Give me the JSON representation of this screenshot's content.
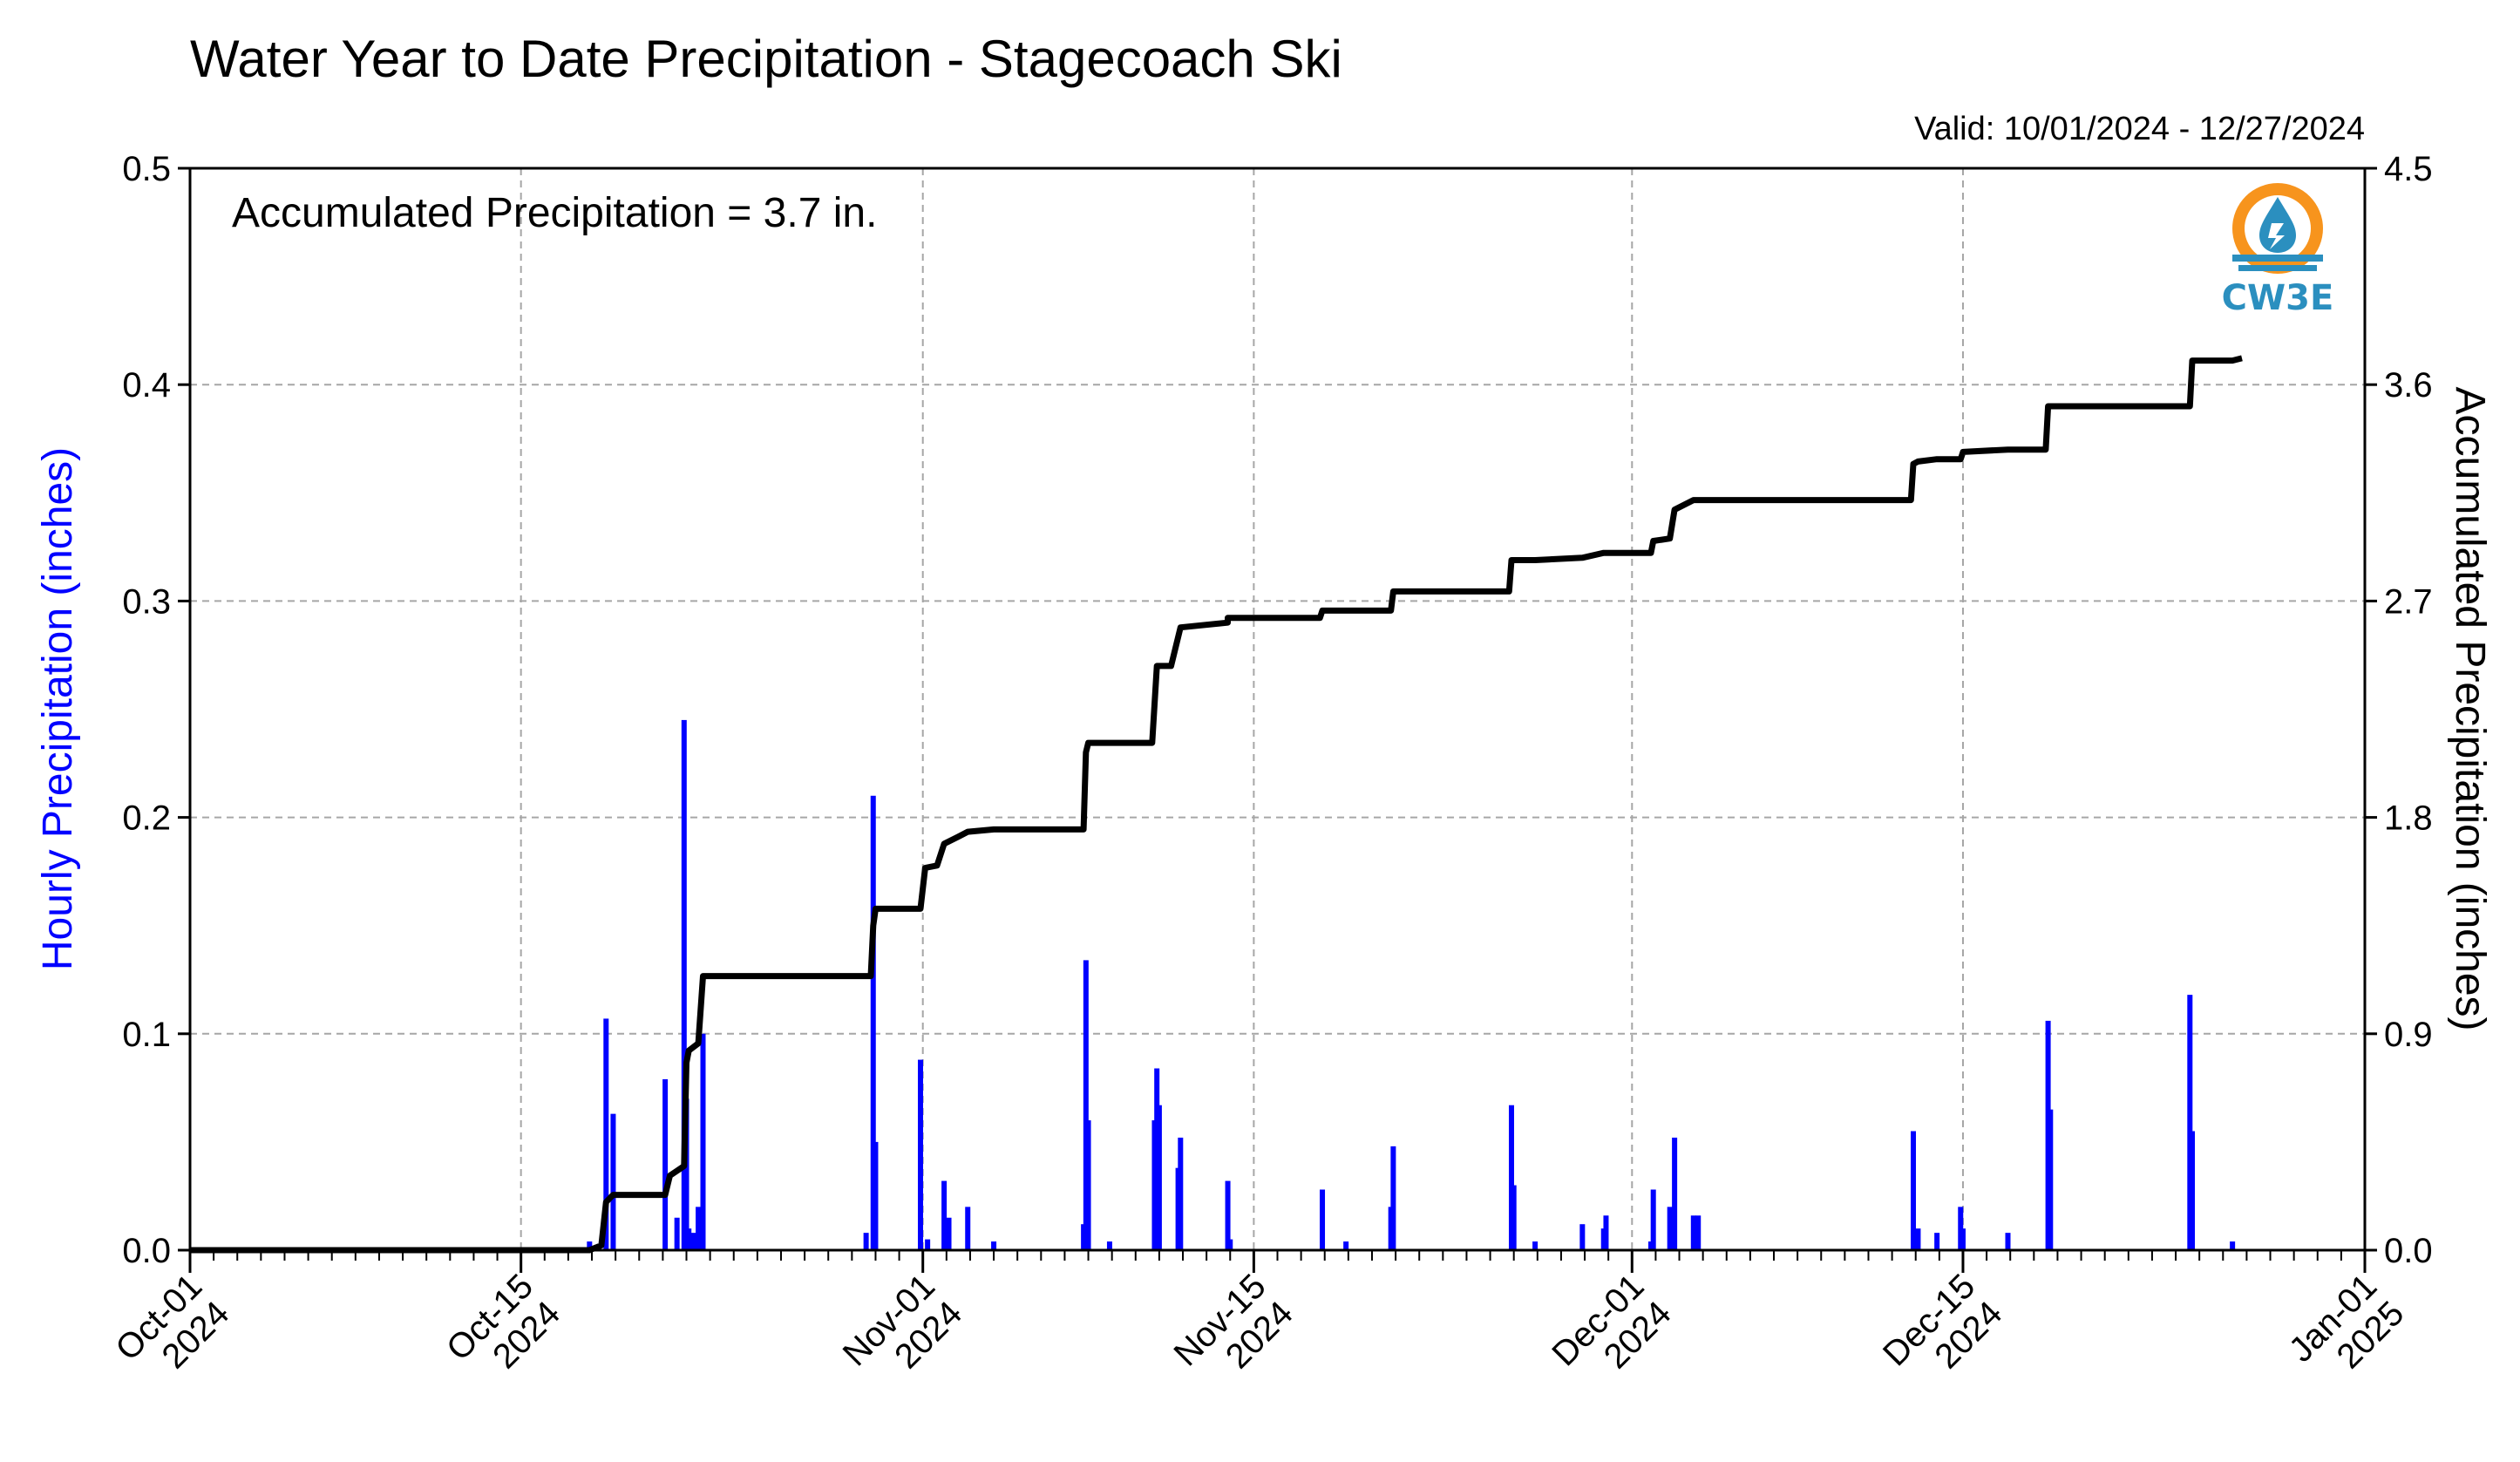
{
  "chart_data": {
    "type": "bar",
    "title": "Water Year to Date Precipitation - Stagecoach Ski",
    "valid_range": "Valid: 10/01/2024 - 12/27/2024",
    "annotation": "Accumulated Precipitation = 3.7 in.",
    "ylabel_left": "Hourly Precipitation (inches)",
    "ylabel_right": "Accumulated Precipitation (inches)",
    "ylim_left": [
      0,
      0.5
    ],
    "ylim_right": [
      0,
      4.5
    ],
    "yticks_left": [
      "0.0",
      "0.1",
      "0.2",
      "0.3",
      "0.4",
      "0.5"
    ],
    "yticks_right": [
      "0.0",
      "0.9",
      "1.8",
      "2.7",
      "3.6",
      "4.5"
    ],
    "xlim_days": [
      0,
      92
    ],
    "xticks": [
      {
        "day": 0,
        "line1": "Oct-01",
        "line2": "2024"
      },
      {
        "day": 14,
        "line1": "Oct-15",
        "line2": "2024"
      },
      {
        "day": 31,
        "line1": "Nov-01",
        "line2": "2024"
      },
      {
        "day": 45,
        "line1": "Nov-15",
        "line2": "2024"
      },
      {
        "day": 61,
        "line1": "Dec-01",
        "line2": "2024"
      },
      {
        "day": 75,
        "line1": "Dec-15",
        "line2": "2024"
      },
      {
        "day": 92,
        "line1": "Jan-01",
        "line2": "2025"
      }
    ],
    "grid": true,
    "logo": "CW3E",
    "colors": {
      "hourly": "#0000ff",
      "accumulated": "#000000",
      "logo_orange": "#f7941d",
      "logo_blue": "#2b8fbf"
    },
    "series": [
      {
        "name": "Hourly Precipitation (inches)",
        "type": "bar",
        "points": [
          [
            16.9,
            0.004
          ],
          [
            17.6,
            0.107
          ],
          [
            17.9,
            0.063
          ],
          [
            20.1,
            0.079
          ],
          [
            20.6,
            0.015
          ],
          [
            20.9,
            0.245
          ],
          [
            21.0,
            0.07
          ],
          [
            21.1,
            0.01
          ],
          [
            21.3,
            0.008
          ],
          [
            21.5,
            0.02
          ],
          [
            21.7,
            0.1
          ],
          [
            28.6,
            0.008
          ],
          [
            28.9,
            0.21
          ],
          [
            29.0,
            0.05
          ],
          [
            30.9,
            0.088
          ],
          [
            31.2,
            0.005
          ],
          [
            31.9,
            0.032
          ],
          [
            32.1,
            0.015
          ],
          [
            32.9,
            0.02
          ],
          [
            34.0,
            0.004
          ],
          [
            37.8,
            0.012
          ],
          [
            37.9,
            0.134
          ],
          [
            38.0,
            0.06
          ],
          [
            38.9,
            0.004
          ],
          [
            40.8,
            0.06
          ],
          [
            40.9,
            0.084
          ],
          [
            41.0,
            0.067
          ],
          [
            41.8,
            0.038
          ],
          [
            41.9,
            0.052
          ],
          [
            43.9,
            0.032
          ],
          [
            44.0,
            0.005
          ],
          [
            47.9,
            0.028
          ],
          [
            48.9,
            0.004
          ],
          [
            50.8,
            0.02
          ],
          [
            50.9,
            0.048
          ],
          [
            55.9,
            0.067
          ],
          [
            56.0,
            0.03
          ],
          [
            56.9,
            0.004
          ],
          [
            58.9,
            0.012
          ],
          [
            59.8,
            0.01
          ],
          [
            59.9,
            0.016
          ],
          [
            61.8,
            0.004
          ],
          [
            61.9,
            0.028
          ],
          [
            62.6,
            0.02
          ],
          [
            62.8,
            0.052
          ],
          [
            63.6,
            0.016
          ],
          [
            63.8,
            0.016
          ],
          [
            72.9,
            0.055
          ],
          [
            73.1,
            0.01
          ],
          [
            73.9,
            0.008
          ],
          [
            74.9,
            0.02
          ],
          [
            75.0,
            0.01
          ],
          [
            76.9,
            0.008
          ],
          [
            78.6,
            0.106
          ],
          [
            78.7,
            0.065
          ],
          [
            84.6,
            0.118
          ],
          [
            84.7,
            0.055
          ],
          [
            86.4,
            0.004
          ]
        ]
      },
      {
        "name": "Accumulated Precipitation (inches)",
        "type": "line",
        "points": [
          [
            0,
            0
          ],
          [
            16.9,
            0
          ],
          [
            17.4,
            0.02
          ],
          [
            17.6,
            0.2
          ],
          [
            17.9,
            0.23
          ],
          [
            20.1,
            0.23
          ],
          [
            20.3,
            0.31
          ],
          [
            20.6,
            0.33
          ],
          [
            20.9,
            0.35
          ],
          [
            21.0,
            0.78
          ],
          [
            21.1,
            0.83
          ],
          [
            21.5,
            0.86
          ],
          [
            21.7,
            1.14
          ],
          [
            28.8,
            1.14
          ],
          [
            28.9,
            1.35
          ],
          [
            29.0,
            1.42
          ],
          [
            30.9,
            1.42
          ],
          [
            31.1,
            1.59
          ],
          [
            31.6,
            1.6
          ],
          [
            31.9,
            1.69
          ],
          [
            32.5,
            1.72
          ],
          [
            32.9,
            1.74
          ],
          [
            34.0,
            1.75
          ],
          [
            37.8,
            1.75
          ],
          [
            37.9,
            2.07
          ],
          [
            38.0,
            2.11
          ],
          [
            40.7,
            2.11
          ],
          [
            40.9,
            2.43
          ],
          [
            41.5,
            2.43
          ],
          [
            41.9,
            2.59
          ],
          [
            43.9,
            2.61
          ],
          [
            43.9,
            2.63
          ],
          [
            47.8,
            2.63
          ],
          [
            47.9,
            2.66
          ],
          [
            48.9,
            2.66
          ],
          [
            50.8,
            2.66
          ],
          [
            50.9,
            2.74
          ],
          [
            55.8,
            2.74
          ],
          [
            55.9,
            2.87
          ],
          [
            56.9,
            2.87
          ],
          [
            58.9,
            2.88
          ],
          [
            59.8,
            2.9
          ],
          [
            61.8,
            2.9
          ],
          [
            61.9,
            2.95
          ],
          [
            62.6,
            2.96
          ],
          [
            62.8,
            3.08
          ],
          [
            63.6,
            3.12
          ],
          [
            72.8,
            3.12
          ],
          [
            72.9,
            3.27
          ],
          [
            73.1,
            3.28
          ],
          [
            73.9,
            3.29
          ],
          [
            74.9,
            3.29
          ],
          [
            75.0,
            3.32
          ],
          [
            76.9,
            3.33
          ],
          [
            78.5,
            3.33
          ],
          [
            78.6,
            3.51
          ],
          [
            84.6,
            3.51
          ],
          [
            84.7,
            3.7
          ],
          [
            86.4,
            3.7
          ],
          [
            86.8,
            3.71
          ]
        ]
      }
    ]
  }
}
